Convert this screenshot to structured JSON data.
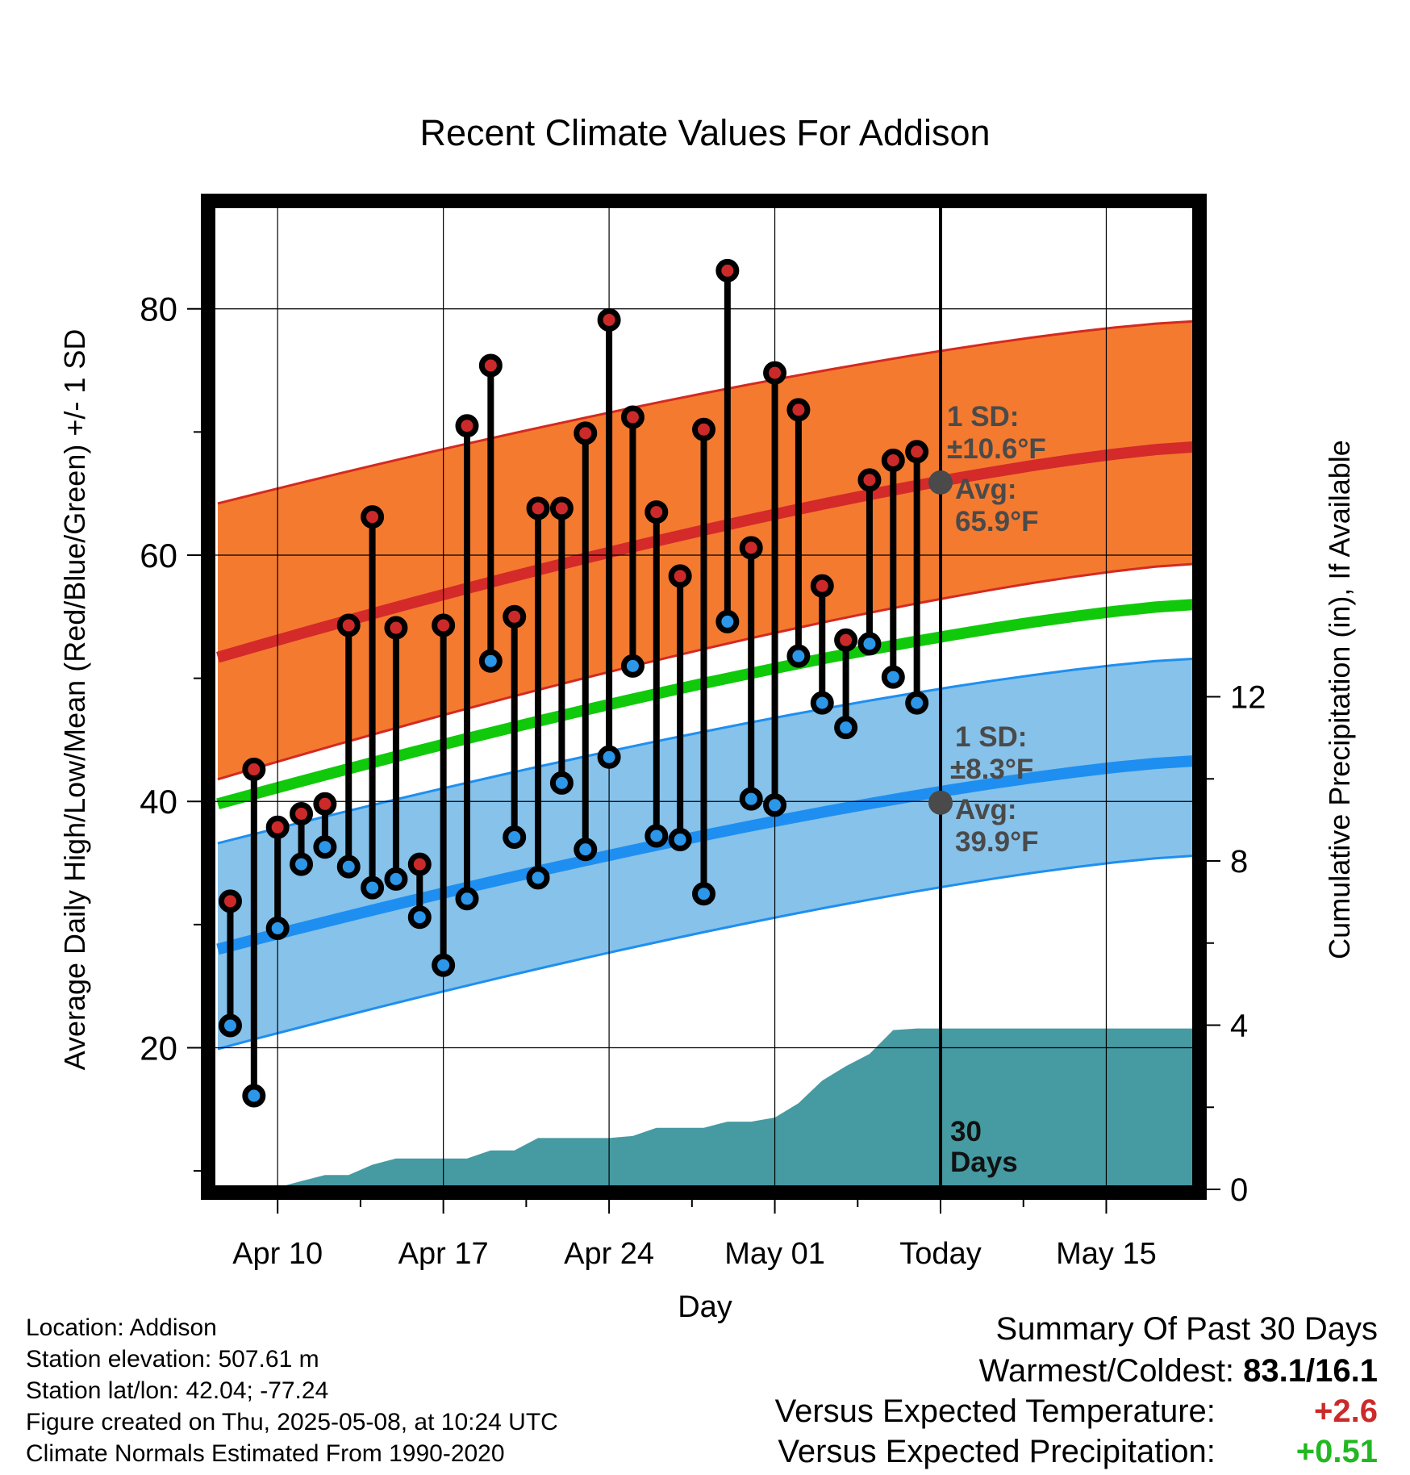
{
  "chart_data": {
    "type": "line",
    "title": "Recent Climate Values For Addison",
    "xlabel": "Day",
    "ylabel": "Average Daily High/Low/Mean (Red/Blue/Green) +/- 1 SD",
    "y2label": "Cumulative Precipitation (in), If Available",
    "ylim": [
      8.5,
      88.5
    ],
    "y2lim": [
      0,
      24
    ],
    "yticks": [
      20,
      40,
      60,
      80
    ],
    "y2ticks": [
      0,
      4,
      8,
      12
    ],
    "xlim": [
      -2.8,
      38.8
    ],
    "xticks": [
      {
        "label": "Apr 10",
        "day": 0
      },
      {
        "label": "Apr 17",
        "day": 7
      },
      {
        "label": "Apr 24",
        "day": 14
      },
      {
        "label": "May 01",
        "day": 21
      },
      {
        "label": "Today",
        "day": 28
      },
      {
        "label": "May 15",
        "day": 35
      }
    ],
    "grid": true,
    "normals": {
      "high_mean_start": 51.7,
      "high_mean_end": 68.8,
      "high_sd_upper_start": 64.2,
      "high_sd_upper_end": 79.0,
      "high_sd_lower_start": 41.8,
      "high_sd_lower_end": 59.3,
      "mean_start": 39.8,
      "mean_end": 56.0,
      "low_mean_start": 28.0,
      "low_mean_end": 43.3,
      "low_sd_upper_start": 36.6,
      "low_sd_upper_end": 51.6,
      "low_sd_lower_start": 19.9,
      "low_sd_lower_end": 35.6
    },
    "series": [
      {
        "name": "High",
        "color": "#cc2a2a",
        "days": [
          -2,
          -1,
          0,
          1,
          2,
          3,
          4,
          5,
          6,
          7,
          8,
          9,
          10,
          11,
          12,
          13,
          14,
          15,
          16,
          17,
          18,
          19,
          20,
          21,
          22,
          23,
          24,
          25,
          26,
          27
        ],
        "values": [
          31.9,
          42.6,
          37.9,
          39.0,
          39.8,
          54.3,
          63.1,
          54.1,
          34.9,
          54.3,
          70.5,
          75.4,
          55.0,
          63.8,
          63.8,
          69.9,
          79.1,
          71.2,
          63.5,
          58.3,
          70.2,
          83.1,
          60.6,
          74.8,
          71.8,
          57.5,
          53.1,
          66.1,
          67.7,
          68.4
        ]
      },
      {
        "name": "Low",
        "color": "#2c96e8",
        "days": [
          -2,
          -1,
          0,
          1,
          2,
          3,
          4,
          5,
          6,
          7,
          8,
          9,
          10,
          11,
          12,
          13,
          14,
          15,
          16,
          17,
          18,
          19,
          20,
          21,
          22,
          23,
          24,
          25,
          26,
          27
        ],
        "values": [
          21.8,
          16.1,
          29.7,
          34.9,
          36.3,
          34.7,
          33.0,
          33.7,
          30.6,
          26.7,
          32.1,
          51.4,
          37.1,
          33.8,
          41.5,
          36.1,
          43.6,
          51.0,
          37.2,
          36.9,
          32.5,
          54.6,
          40.2,
          39.7,
          51.8,
          48.0,
          46.0,
          52.8,
          50.1,
          48.0
        ]
      },
      {
        "name": "Cumulative Precipitation",
        "color": "#469aa2",
        "days": [
          -0.3,
          1,
          2,
          3,
          4,
          5,
          6,
          7,
          8,
          9,
          10,
          11,
          12,
          13,
          14,
          15,
          16,
          17,
          18,
          19,
          20,
          21,
          22,
          23,
          24,
          25,
          26,
          27,
          28,
          29,
          30,
          31,
          32,
          33,
          34,
          35,
          36,
          37,
          38,
          38.8
        ],
        "values": [
          0,
          0.2,
          0.35,
          0.35,
          0.6,
          0.75,
          0.75,
          0.75,
          0.75,
          0.95,
          0.95,
          1.25,
          1.25,
          1.25,
          1.25,
          1.3,
          1.5,
          1.5,
          1.5,
          1.65,
          1.65,
          1.75,
          2.1,
          2.65,
          3.0,
          3.3,
          3.88,
          3.92,
          3.92,
          3.92,
          3.92,
          3.92,
          3.92,
          3.92,
          3.92,
          3.92,
          3.92,
          3.92,
          3.92,
          3.92
        ]
      }
    ],
    "annotations": {
      "high": {
        "sd_line1": "1 SD:",
        "sd_line2": "±10.6°F",
        "avg_line1": "Avg:",
        "avg_line2": "65.9°F",
        "value": 65.9
      },
      "low": {
        "sd_line1": "1 SD:",
        "sd_line2": "±8.3°F",
        "avg_line1": "Avg:",
        "avg_line2": "39.9°F",
        "value": 39.9
      },
      "days_line1": "30",
      "days_line2": "Days"
    }
  },
  "info": {
    "location": "Location: Addison",
    "elevation": "Station elevation: 507.61 m",
    "latlon": "Station lat/lon: 42.04; -77.24",
    "created": "Figure created on Thu, 2025-05-08, at 10:24 UTC",
    "normals": "Climate Normals Estimated From 1990-2020"
  },
  "summary": {
    "title": "Summary Of Past 30 Days",
    "warmest_label": "Warmest/Coldest:",
    "warmest_value": "83.1/16.1",
    "temp_label": "Versus Expected Temperature:",
    "temp_value": "+2.6",
    "temp_color": "#cc2a2a",
    "precip_label": "Versus Expected Precipitation:",
    "precip_value": "+0.51",
    "precip_color": "#22b822"
  }
}
